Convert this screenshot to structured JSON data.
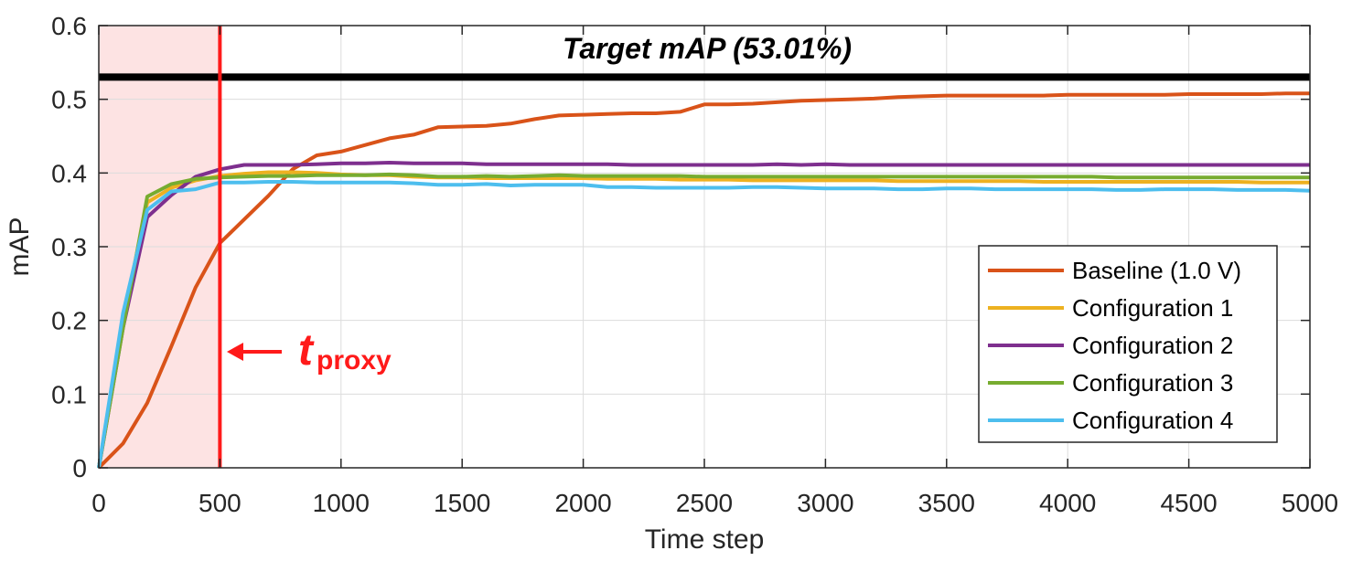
{
  "chart_data": {
    "type": "line",
    "xlabel": "Time step",
    "ylabel": "mAP",
    "xlim": [
      0,
      5000
    ],
    "ylim": [
      0,
      0.6
    ],
    "xticks": [
      "0",
      "500",
      "1000",
      "1500",
      "2000",
      "2500",
      "3000",
      "3500",
      "4000",
      "4500",
      "5000"
    ],
    "yticks": [
      "0",
      "0.1",
      "0.2",
      "0.3",
      "0.4",
      "0.5",
      "0.6"
    ],
    "grid": true,
    "legend_position": "bottom-right",
    "target": {
      "value": 0.5301,
      "label": "Target mAP (53.01%)",
      "color": "#000000"
    },
    "proxy": {
      "x": 500,
      "label_main": "t",
      "label_sub": "proxy",
      "color": "#ff1a1a",
      "shade_color": "#fde3e3"
    },
    "x": [
      0,
      100,
      200,
      300,
      400,
      500,
      600,
      700,
      800,
      900,
      1000,
      1100,
      1200,
      1300,
      1400,
      1500,
      1600,
      1700,
      1800,
      1900,
      2000,
      2100,
      2200,
      2300,
      2400,
      2500,
      2600,
      2700,
      2800,
      2900,
      3000,
      3100,
      3200,
      3300,
      3400,
      3500,
      3600,
      3700,
      3800,
      3900,
      4000,
      4100,
      4200,
      4300,
      4400,
      4500,
      4600,
      4700,
      4800,
      4900,
      5000
    ],
    "series": [
      {
        "name": "Baseline (1.0 V)",
        "color": "#d95319",
        "values": [
          0,
          0.033,
          0.088,
          0.165,
          0.245,
          0.305,
          0.337,
          0.369,
          0.405,
          0.424,
          0.429,
          0.438,
          0.447,
          0.452,
          0.462,
          0.463,
          0.464,
          0.467,
          0.473,
          0.478,
          0.479,
          0.48,
          0.481,
          0.481,
          0.483,
          0.493,
          0.493,
          0.494,
          0.496,
          0.498,
          0.499,
          0.5,
          0.501,
          0.503,
          0.504,
          0.505,
          0.505,
          0.505,
          0.505,
          0.505,
          0.506,
          0.506,
          0.506,
          0.506,
          0.506,
          0.507,
          0.507,
          0.507,
          0.507,
          0.508,
          0.508
        ]
      },
      {
        "name": "Configuration 1",
        "color": "#edb120",
        "values": [
          0,
          0.2,
          0.36,
          0.38,
          0.39,
          0.396,
          0.399,
          0.401,
          0.401,
          0.4,
          0.398,
          0.397,
          0.397,
          0.395,
          0.394,
          0.394,
          0.393,
          0.393,
          0.393,
          0.393,
          0.393,
          0.392,
          0.392,
          0.392,
          0.391,
          0.391,
          0.391,
          0.39,
          0.39,
          0.39,
          0.39,
          0.39,
          0.39,
          0.389,
          0.389,
          0.389,
          0.389,
          0.389,
          0.389,
          0.388,
          0.388,
          0.388,
          0.388,
          0.388,
          0.388,
          0.388,
          0.388,
          0.388,
          0.387,
          0.387,
          0.387
        ]
      },
      {
        "name": "Configuration 2",
        "color": "#7e2f8e",
        "values": [
          0,
          0.19,
          0.34,
          0.37,
          0.395,
          0.405,
          0.411,
          0.411,
          0.411,
          0.412,
          0.413,
          0.413,
          0.414,
          0.413,
          0.413,
          0.413,
          0.412,
          0.412,
          0.412,
          0.412,
          0.412,
          0.412,
          0.411,
          0.411,
          0.411,
          0.411,
          0.411,
          0.411,
          0.412,
          0.411,
          0.412,
          0.411,
          0.411,
          0.411,
          0.411,
          0.411,
          0.411,
          0.411,
          0.411,
          0.411,
          0.411,
          0.411,
          0.411,
          0.411,
          0.411,
          0.411,
          0.411,
          0.411,
          0.411,
          0.411,
          0.411
        ]
      },
      {
        "name": "Configuration 3",
        "color": "#77ac30",
        "values": [
          0,
          0.19,
          0.368,
          0.385,
          0.392,
          0.394,
          0.395,
          0.396,
          0.396,
          0.397,
          0.397,
          0.397,
          0.398,
          0.397,
          0.395,
          0.395,
          0.396,
          0.395,
          0.396,
          0.397,
          0.396,
          0.396,
          0.396,
          0.396,
          0.396,
          0.395,
          0.395,
          0.395,
          0.395,
          0.395,
          0.395,
          0.395,
          0.395,
          0.395,
          0.395,
          0.395,
          0.395,
          0.395,
          0.395,
          0.395,
          0.395,
          0.395,
          0.394,
          0.394,
          0.394,
          0.394,
          0.394,
          0.394,
          0.394,
          0.394,
          0.394
        ]
      },
      {
        "name": "Configuration 4",
        "color": "#4dbeee",
        "values": [
          0,
          0.21,
          0.35,
          0.375,
          0.378,
          0.387,
          0.387,
          0.388,
          0.388,
          0.387,
          0.387,
          0.387,
          0.387,
          0.386,
          0.384,
          0.384,
          0.385,
          0.383,
          0.384,
          0.384,
          0.384,
          0.381,
          0.381,
          0.38,
          0.38,
          0.38,
          0.38,
          0.381,
          0.381,
          0.38,
          0.379,
          0.379,
          0.379,
          0.378,
          0.378,
          0.379,
          0.379,
          0.378,
          0.378,
          0.378,
          0.378,
          0.378,
          0.377,
          0.377,
          0.378,
          0.378,
          0.378,
          0.377,
          0.377,
          0.377,
          0.376
        ]
      }
    ]
  }
}
